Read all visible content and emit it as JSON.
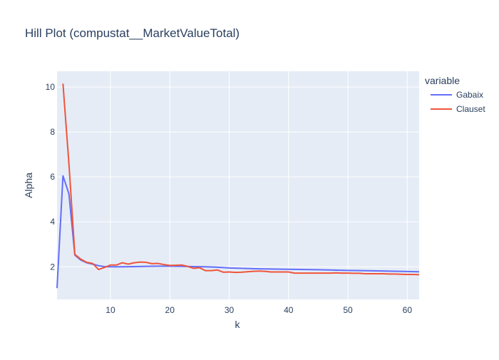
{
  "chart_data": {
    "type": "line",
    "title": "Hill Plot (compustat__MarketValueTotal)",
    "xlabel": "k",
    "ylabel": "Alpha",
    "xlim": [
      1,
      62
    ],
    "ylim": [
      0.55,
      10.7
    ],
    "xticks": [
      10,
      20,
      30,
      40,
      50,
      60
    ],
    "yticks": [
      2,
      4,
      6,
      8,
      10
    ],
    "grid": true,
    "plot_bgcolor": "#E5ECF6",
    "legend": {
      "title": "variable",
      "placement": "right"
    },
    "series": [
      {
        "name": "Gabaix",
        "color": "#636EFA",
        "x": [
          1,
          2,
          3,
          4,
          5,
          6,
          7,
          8,
          9,
          10,
          12,
          14,
          16,
          18,
          20,
          22,
          24,
          26,
          28,
          30,
          35,
          40,
          45,
          50,
          55,
          60,
          62
        ],
        "y": [
          1.05,
          6.05,
          5.25,
          2.52,
          2.3,
          2.18,
          2.12,
          2.05,
          2.01,
          2.0,
          2.0,
          2.01,
          2.02,
          2.03,
          2.03,
          2.02,
          2.01,
          2.0,
          1.98,
          1.95,
          1.91,
          1.89,
          1.87,
          1.84,
          1.82,
          1.79,
          1.78
        ]
      },
      {
        "name": "Clauset",
        "color": "#EF553B",
        "x": [
          2,
          3,
          4,
          5,
          6,
          7,
          8,
          9,
          10,
          11,
          12,
          13,
          14,
          15,
          16,
          17,
          18,
          19,
          20,
          21,
          22,
          23,
          24,
          25,
          26,
          27,
          28,
          29,
          30,
          31,
          32,
          33,
          34,
          35,
          36,
          37,
          38,
          39,
          40,
          41,
          42,
          43,
          44,
          45,
          46,
          47,
          48,
          49,
          50,
          51,
          52,
          53,
          54,
          55,
          56,
          57,
          58,
          59,
          60,
          61,
          62
        ],
        "y": [
          10.15,
          6.6,
          2.55,
          2.34,
          2.2,
          2.15,
          1.88,
          1.97,
          2.08,
          2.08,
          2.18,
          2.12,
          2.18,
          2.21,
          2.2,
          2.14,
          2.15,
          2.1,
          2.06,
          2.07,
          2.08,
          2.02,
          1.93,
          1.96,
          1.83,
          1.83,
          1.86,
          1.76,
          1.77,
          1.75,
          1.76,
          1.78,
          1.8,
          1.81,
          1.8,
          1.77,
          1.77,
          1.77,
          1.77,
          1.72,
          1.72,
          1.72,
          1.72,
          1.72,
          1.72,
          1.72,
          1.73,
          1.72,
          1.72,
          1.71,
          1.71,
          1.69,
          1.69,
          1.69,
          1.69,
          1.68,
          1.68,
          1.67,
          1.66,
          1.66,
          1.65
        ]
      }
    ]
  }
}
